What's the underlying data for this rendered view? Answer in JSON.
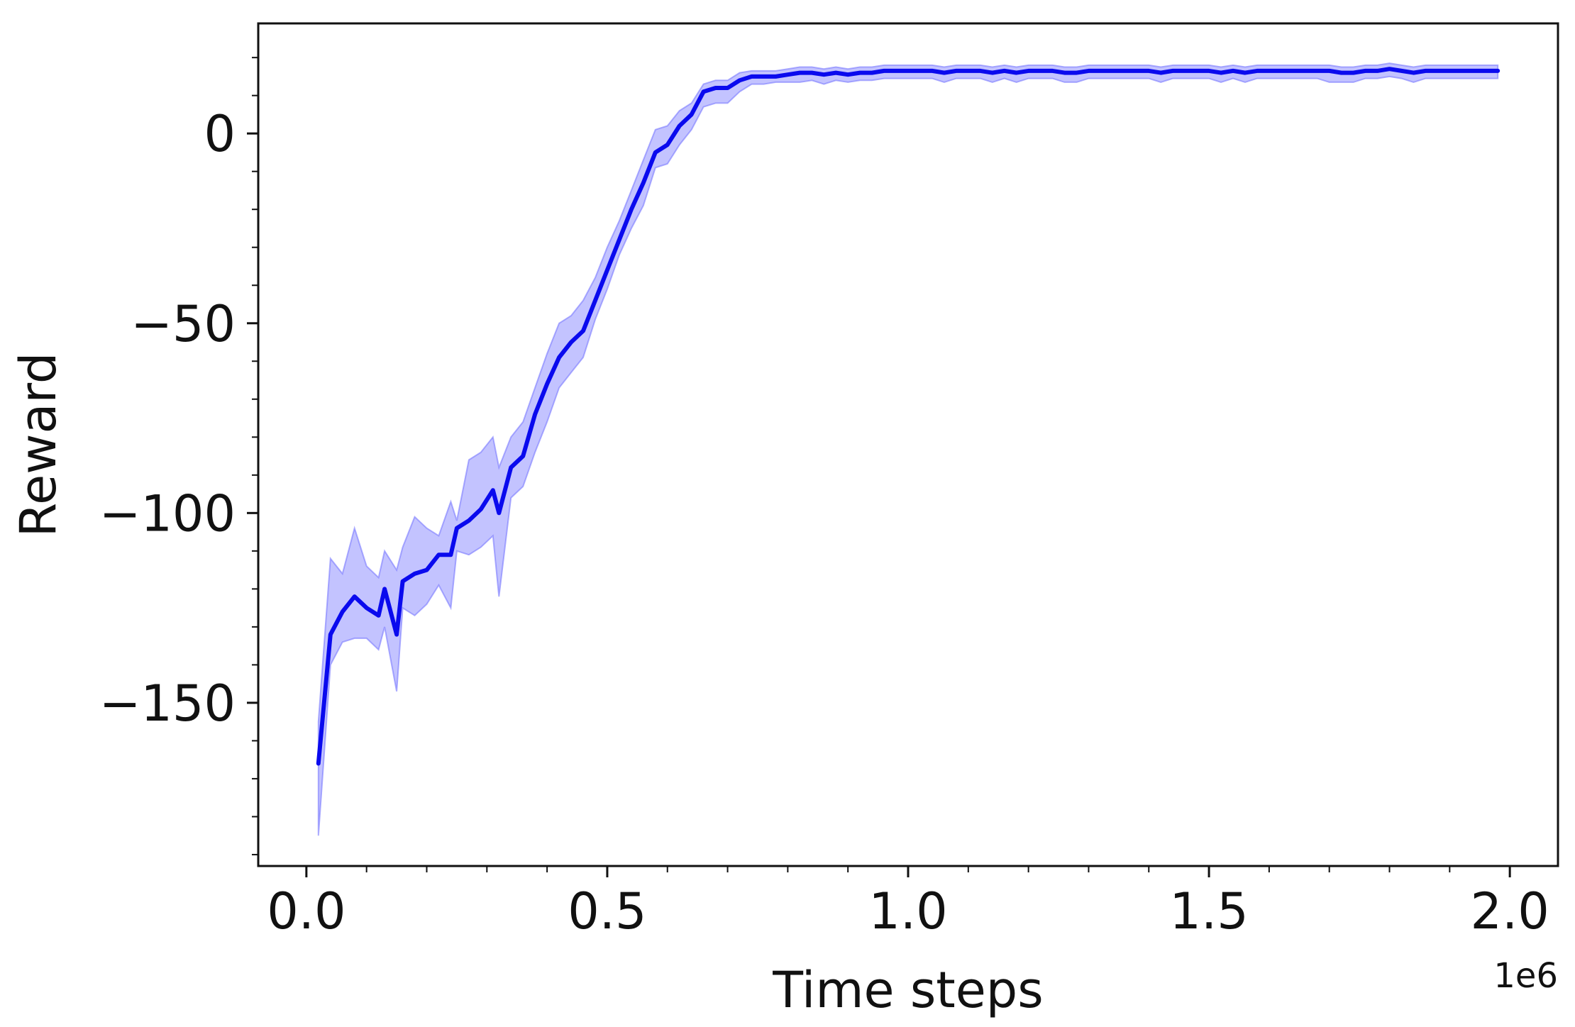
{
  "chart_data": {
    "type": "line",
    "title": "",
    "xlabel": "Time steps",
    "ylabel": "Reward",
    "x_offset_label": "1e6",
    "x_tick_labels": [
      "0.0",
      "0.5",
      "1.0",
      "1.5",
      "2.0"
    ],
    "y_tick_labels": [
      "0",
      "−50",
      "−100",
      "−150"
    ],
    "xlim": [
      -0.08,
      2.08
    ],
    "ylim": [
      -193,
      29
    ],
    "x_ticks": [
      0.0,
      0.5,
      1.0,
      1.5,
      2.0
    ],
    "y_ticks": [
      0,
      -50,
      -100,
      -150
    ],
    "x_minor_step": 0.1,
    "y_minor_step": 10,
    "grid": false,
    "legend": "none",
    "line_color": "#0a0aee",
    "band_color": "#7070ff",
    "series": [
      {
        "x": [
          0.02,
          0.04,
          0.06,
          0.08,
          0.1,
          0.12,
          0.13,
          0.15,
          0.16,
          0.18,
          0.2,
          0.22,
          0.24,
          0.25,
          0.27,
          0.29,
          0.31,
          0.32,
          0.34,
          0.36,
          0.38,
          0.4,
          0.42,
          0.44,
          0.46,
          0.48,
          0.5,
          0.52,
          0.54,
          0.56,
          0.58,
          0.6,
          0.62,
          0.64,
          0.66,
          0.68,
          0.7,
          0.72,
          0.74,
          0.76,
          0.78,
          0.8,
          0.82,
          0.84,
          0.86,
          0.88,
          0.9,
          0.92,
          0.94,
          0.96,
          0.98,
          1.0,
          1.02,
          1.04,
          1.06,
          1.08,
          1.1,
          1.12,
          1.14,
          1.16,
          1.18,
          1.2,
          1.22,
          1.24,
          1.26,
          1.28,
          1.3,
          1.32,
          1.34,
          1.36,
          1.38,
          1.4,
          1.42,
          1.44,
          1.46,
          1.48,
          1.5,
          1.52,
          1.54,
          1.56,
          1.58,
          1.6,
          1.62,
          1.64,
          1.66,
          1.68,
          1.7,
          1.72,
          1.74,
          1.76,
          1.78,
          1.8,
          1.82,
          1.84,
          1.86,
          1.88,
          1.9,
          1.92,
          1.94,
          1.96,
          1.98
        ],
        "y": [
          -166,
          -132,
          -126,
          -122,
          -125,
          -127,
          -120,
          -132,
          -118,
          -116,
          -115,
          -111,
          -111,
          -104,
          -102,
          -99,
          -94,
          -100,
          -88,
          -85,
          -74,
          -66,
          -59,
          -55,
          -52,
          -44,
          -36,
          -28,
          -20,
          -13,
          -5,
          -3,
          2,
          5,
          11,
          12,
          12,
          14,
          15,
          15,
          15,
          15.5,
          16,
          16,
          15.5,
          16,
          15.5,
          16,
          16,
          16.5,
          16.5,
          16.5,
          16.5,
          16.5,
          16,
          16.5,
          16.5,
          16.5,
          16,
          16.5,
          16,
          16.5,
          16.5,
          16.5,
          16,
          16,
          16.5,
          16.5,
          16.5,
          16.5,
          16.5,
          16.5,
          16,
          16.5,
          16.5,
          16.5,
          16.5,
          16,
          16.5,
          16,
          16.5,
          16.5,
          16.5,
          16.5,
          16.5,
          16.5,
          16.5,
          16,
          16,
          16.5,
          16.5,
          17,
          16.5,
          16,
          16.5,
          16.5,
          16.5,
          16.5,
          16.5,
          16.5,
          16.5
        ],
        "lower": [
          -185,
          -140,
          -134,
          -133,
          -133,
          -136,
          -130,
          -147,
          -125,
          -127,
          -124,
          -119,
          -125,
          -110,
          -111,
          -109,
          -106,
          -122,
          -96,
          -93,
          -84,
          -76,
          -67,
          -63,
          -59,
          -49,
          -41,
          -32,
          -25,
          -19,
          -9,
          -8,
          -3,
          1,
          7,
          8,
          8,
          11,
          13,
          13,
          13.5,
          13.5,
          13.5,
          14,
          13,
          14,
          13.5,
          14,
          14,
          14.5,
          14.5,
          14.5,
          14.5,
          14.5,
          13.5,
          14.5,
          14.5,
          14.5,
          13.5,
          14.5,
          13.5,
          14.5,
          14.5,
          14.5,
          13.5,
          13.5,
          14.5,
          14.5,
          14.5,
          14.5,
          14.5,
          14.5,
          13.5,
          14.5,
          14.5,
          14.5,
          14.5,
          13.5,
          14.5,
          13.5,
          14.5,
          14.5,
          14.5,
          14.5,
          14.5,
          14.5,
          13.5,
          13.5,
          13.5,
          14.5,
          14.5,
          15,
          14.5,
          13.5,
          14.5,
          14.5,
          14.5,
          14.5,
          14.5,
          14.5,
          14.5
        ],
        "upper": [
          -155,
          -112,
          -116,
          -104,
          -114,
          -117,
          -110,
          -115,
          -109,
          -101,
          -104,
          -106,
          -97,
          -102,
          -86,
          -84,
          -80,
          -88,
          -80,
          -76,
          -67,
          -58,
          -50,
          -48,
          -44,
          -38,
          -30,
          -23,
          -15,
          -7,
          1,
          2,
          6,
          8,
          13,
          14,
          14,
          16,
          16.5,
          16.5,
          16.5,
          17,
          17.5,
          17.5,
          17,
          17.5,
          17,
          17.5,
          17.5,
          18,
          18,
          18,
          18,
          18,
          17.5,
          18,
          18,
          18,
          17.5,
          18,
          17.5,
          18,
          18,
          18,
          17.5,
          17.5,
          18,
          18,
          18,
          18,
          18,
          18,
          17.5,
          18,
          18,
          18,
          18,
          17.5,
          18,
          17.5,
          18,
          18,
          18,
          18,
          18,
          18,
          18,
          17.5,
          17.5,
          18,
          18,
          18.5,
          18,
          17.5,
          18,
          18,
          18,
          18,
          18,
          18,
          18
        ]
      }
    ]
  }
}
